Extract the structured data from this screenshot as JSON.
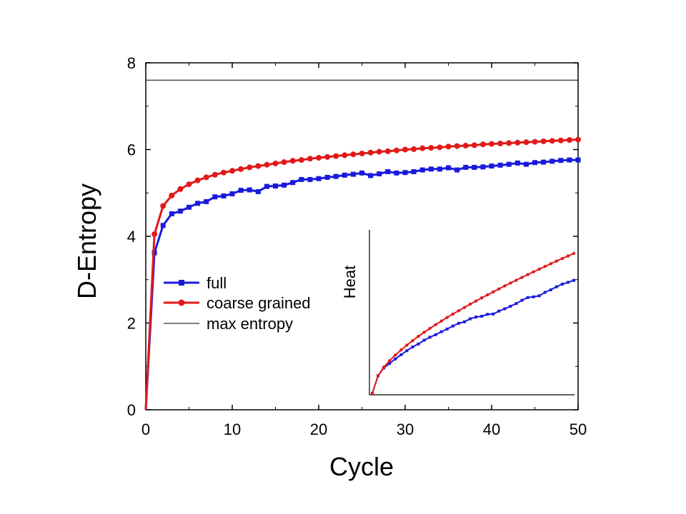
{
  "chart_data": [
    {
      "type": "line",
      "xlabel": "Cycle",
      "ylabel": "D-Entropy",
      "xlim": [
        0,
        50
      ],
      "ylim": [
        0,
        8
      ],
      "xticks": [
        0,
        10,
        20,
        30,
        40,
        50
      ],
      "yticks": [
        0,
        2,
        4,
        6,
        8
      ],
      "x_minor_step": 5,
      "y_minor_step": 1,
      "grid": false,
      "legend_position": "center-left",
      "series": [
        {
          "name": "full",
          "color": "#1a1adc",
          "marker": "square",
          "x": [
            0,
            1,
            2,
            3,
            4,
            5,
            6,
            7,
            8,
            9,
            10,
            11,
            12,
            13,
            14,
            15,
            16,
            17,
            18,
            19,
            20,
            21,
            22,
            23,
            24,
            25,
            26,
            27,
            28,
            29,
            30,
            31,
            32,
            33,
            34,
            35,
            36,
            37,
            38,
            39,
            40,
            41,
            42,
            43,
            44,
            45,
            46,
            47,
            48,
            49,
            50
          ],
          "y": [
            0,
            3.62,
            4.25,
            4.52,
            4.58,
            4.67,
            4.76,
            4.8,
            4.91,
            4.93,
            4.98,
            5.06,
            5.07,
            5.03,
            5.15,
            5.16,
            5.18,
            5.24,
            5.31,
            5.31,
            5.33,
            5.36,
            5.38,
            5.41,
            5.43,
            5.46,
            5.4,
            5.44,
            5.49,
            5.46,
            5.47,
            5.49,
            5.53,
            5.55,
            5.55,
            5.58,
            5.53,
            5.59,
            5.59,
            5.6,
            5.62,
            5.64,
            5.66,
            5.69,
            5.66,
            5.7,
            5.71,
            5.73,
            5.75,
            5.76,
            5.76
          ]
        },
        {
          "name": "coarse grained",
          "color": "#e01a1a",
          "marker": "circle",
          "x": [
            0,
            1,
            2,
            3,
            4,
            5,
            6,
            7,
            8,
            9,
            10,
            11,
            12,
            13,
            14,
            15,
            16,
            17,
            18,
            19,
            20,
            21,
            22,
            23,
            24,
            25,
            26,
            27,
            28,
            29,
            30,
            31,
            32,
            33,
            34,
            35,
            36,
            37,
            38,
            39,
            40,
            41,
            42,
            43,
            44,
            45,
            46,
            47,
            48,
            49,
            50
          ],
          "y": [
            0,
            4.05,
            4.7,
            4.94,
            5.09,
            5.2,
            5.29,
            5.36,
            5.42,
            5.47,
            5.51,
            5.55,
            5.59,
            5.62,
            5.65,
            5.68,
            5.71,
            5.74,
            5.76,
            5.79,
            5.81,
            5.83,
            5.85,
            5.87,
            5.89,
            5.91,
            5.93,
            5.95,
            5.96,
            5.98,
            6.0,
            6.01,
            6.03,
            6.04,
            6.05,
            6.07,
            6.08,
            6.09,
            6.1,
            6.12,
            6.13,
            6.14,
            6.15,
            6.16,
            6.17,
            6.18,
            6.19,
            6.2,
            6.21,
            6.22,
            6.23
          ]
        },
        {
          "name": "max entropy",
          "color": "#000000",
          "marker": "none",
          "x": [
            0,
            50
          ],
          "y": [
            7.6,
            7.6
          ]
        }
      ]
    },
    {
      "type": "line",
      "ylabel": "Heat",
      "xlabel": "",
      "grid": false,
      "series": [
        {
          "color": "#1a1adc",
          "marker": "square",
          "x": [
            0,
            1,
            2,
            3,
            4,
            5,
            6,
            7,
            8,
            9,
            10,
            11,
            12,
            13,
            14,
            15,
            16,
            17,
            18,
            19,
            20,
            21,
            22,
            23,
            24,
            25,
            26,
            27,
            28,
            29,
            30,
            31,
            32,
            33,
            34,
            35
          ],
          "y": [
            0,
            0.118,
            0.17,
            0.2,
            0.23,
            0.258,
            0.285,
            0.31,
            0.33,
            0.355,
            0.375,
            0.392,
            0.412,
            0.43,
            0.45,
            0.468,
            0.478,
            0.498,
            0.51,
            0.515,
            0.528,
            0.53,
            0.55,
            0.565,
            0.582,
            0.6,
            0.622,
            0.64,
            0.645,
            0.652,
            0.675,
            0.692,
            0.712,
            0.73,
            0.742,
            0.755
          ]
        },
        {
          "color": "#e01a1a",
          "marker": "circle",
          "x": [
            0,
            1,
            2,
            3,
            4,
            5,
            6,
            7,
            8,
            9,
            10,
            11,
            12,
            13,
            14,
            15,
            16,
            17,
            18,
            19,
            20,
            21,
            22,
            23,
            24,
            25,
            26,
            27,
            28,
            29,
            30,
            31,
            32,
            33,
            34,
            35
          ],
          "y": [
            0,
            0.118,
            0.175,
            0.218,
            0.256,
            0.29,
            0.322,
            0.352,
            0.381,
            0.408,
            0.434,
            0.459,
            0.483,
            0.507,
            0.53,
            0.552,
            0.574,
            0.596,
            0.617,
            0.638,
            0.658,
            0.678,
            0.698,
            0.718,
            0.737,
            0.756,
            0.775,
            0.794,
            0.812,
            0.83,
            0.848,
            0.866,
            0.884,
            0.901,
            0.918,
            0.935
          ]
        }
      ]
    }
  ]
}
